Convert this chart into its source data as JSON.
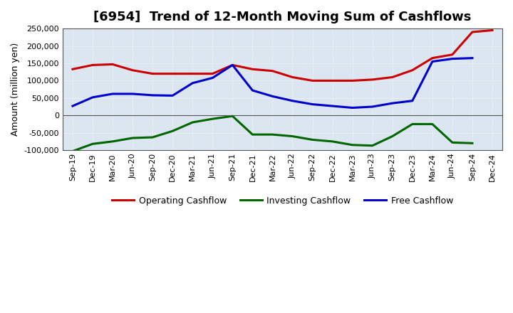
{
  "title": "[6954]  Trend of 12-Month Moving Sum of Cashflows",
  "ylabel": "Amount (million yen)",
  "ylim": [
    -100000,
    250000
  ],
  "yticks": [
    -100000,
    -50000,
    0,
    50000,
    100000,
    150000,
    200000,
    250000
  ],
  "background_color": "#ffffff",
  "plot_bg_color": "#dce6f0",
  "grid_color": "#ffffff",
  "labels": [
    "Sep-19",
    "Dec-19",
    "Mar-20",
    "Jun-20",
    "Sep-20",
    "Dec-20",
    "Mar-21",
    "Jun-21",
    "Sep-21",
    "Dec-21",
    "Mar-22",
    "Jun-22",
    "Sep-22",
    "Dec-22",
    "Mar-23",
    "Jun-23",
    "Sep-23",
    "Dec-23",
    "Mar-24",
    "Jun-24",
    "Sep-24",
    "Dec-24"
  ],
  "operating": [
    133000,
    145000,
    147000,
    130000,
    120000,
    120000,
    120000,
    120000,
    145000,
    133000,
    128000,
    110000,
    100000,
    100000,
    100000,
    103000,
    110000,
    130000,
    165000,
    175000,
    240000,
    245000
  ],
  "investing": [
    -103000,
    -82000,
    -75000,
    -65000,
    -63000,
    -45000,
    -20000,
    -10000,
    -2000,
    -55000,
    -55000,
    -60000,
    -70000,
    -75000,
    -85000,
    -87000,
    -60000,
    -25000,
    -25000,
    -78000,
    -80000,
    null
  ],
  "free": [
    27000,
    52000,
    62000,
    62000,
    58000,
    57000,
    93000,
    108000,
    145000,
    72000,
    55000,
    42000,
    32000,
    27000,
    22000,
    25000,
    35000,
    42000,
    155000,
    163000,
    165000,
    null
  ],
  "operating_color": "#cc0000",
  "investing_color": "#006600",
  "free_color": "#0000cc",
  "line_width": 2.2,
  "legend_labels": [
    "Operating Cashflow",
    "Investing Cashflow",
    "Free Cashflow"
  ],
  "title_fontsize": 13,
  "tick_fontsize": 8,
  "ylabel_fontsize": 9,
  "legend_fontsize": 9
}
